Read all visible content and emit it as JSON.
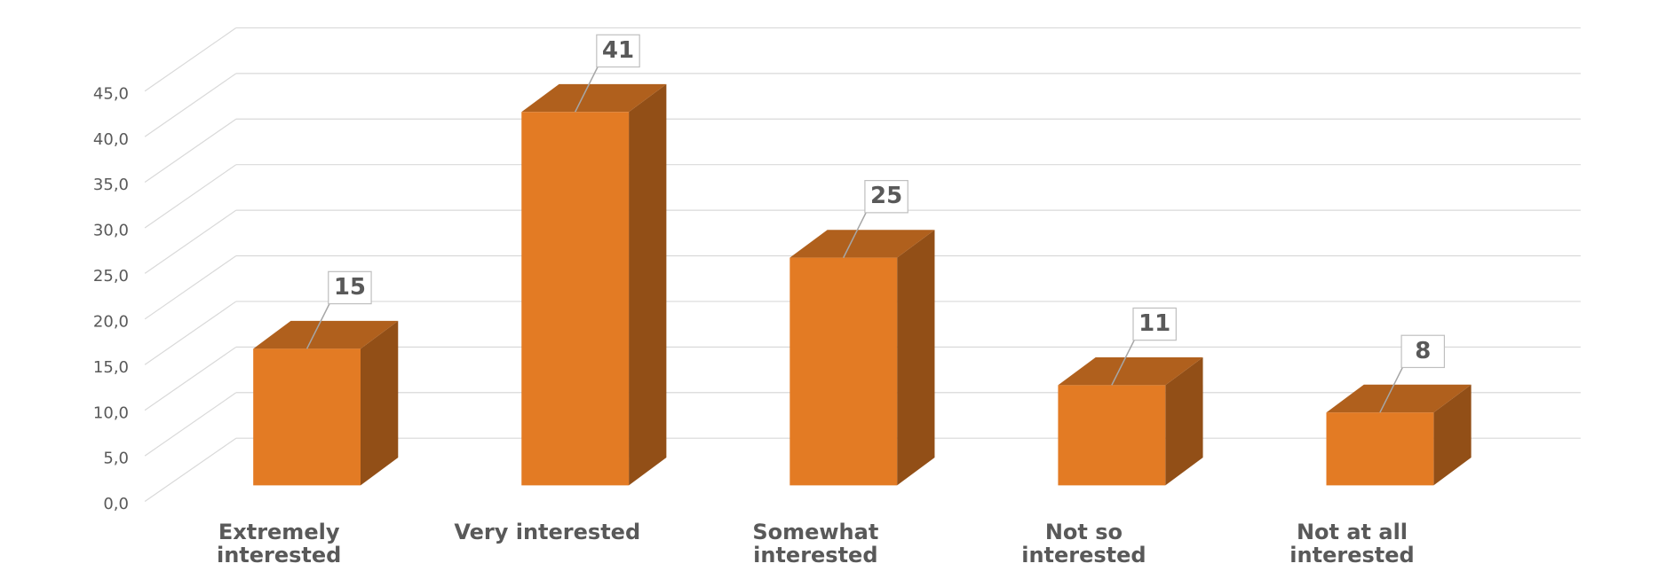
{
  "chart_data": {
    "type": "bar3d",
    "categories": [
      "Extremely interested",
      "Very interested",
      "Somewhat interested",
      "Not so interested",
      "Not at all interested"
    ],
    "values": [
      15,
      41,
      25,
      11,
      8
    ],
    "color": "#e37b24",
    "ylim": [
      0,
      45
    ],
    "yticks": [
      {
        "value": 0,
        "label": "0,0"
      },
      {
        "value": 5,
        "label": "5,0"
      },
      {
        "value": 10,
        "label": "10,0"
      },
      {
        "value": 15,
        "label": "15,0"
      },
      {
        "value": 20,
        "label": "20,0"
      },
      {
        "value": 25,
        "label": "25,0"
      },
      {
        "value": 30,
        "label": "30,0"
      },
      {
        "value": 35,
        "label": "35,0"
      },
      {
        "value": 40,
        "label": "40,0"
      },
      {
        "value": 45,
        "label": "45,0"
      }
    ],
    "grid": true
  }
}
